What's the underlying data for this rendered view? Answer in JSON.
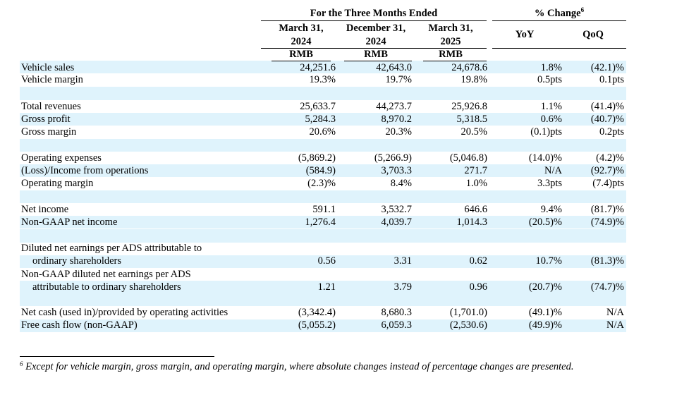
{
  "header": {
    "period_group": "For the Three Months Ended",
    "change_group": "% Change",
    "change_sup": "6",
    "columns": [
      {
        "line1": "March 31,",
        "line2": "2024",
        "currency": "RMB"
      },
      {
        "line1": "December 31,",
        "line2": "2024",
        "currency": "RMB"
      },
      {
        "line1": "March 31,",
        "line2": "2025",
        "currency": "RMB"
      }
    ],
    "yoy": "YoY",
    "qoq": "QoQ"
  },
  "rows": [
    {
      "label": "Vehicle sales",
      "values": [
        "24,251.6",
        "42,643.0",
        "24,678.6"
      ],
      "yoy": "1.8%",
      "qoq": "(42.1)%"
    },
    {
      "label": "Vehicle margin",
      "values": [
        "19.3%",
        "19.7%",
        "19.8%"
      ],
      "yoy": "0.5pts",
      "qoq": "0.1pts"
    },
    {
      "label": "Total revenues",
      "values": [
        "25,633.7",
        "44,273.7",
        "25,926.8"
      ],
      "yoy": "1.1%",
      "qoq": "(41.4)%"
    },
    {
      "label": "Gross profit",
      "values": [
        "5,284.3",
        "8,970.2",
        "5,318.5"
      ],
      "yoy": "0.6%",
      "qoq": "(40.7)%"
    },
    {
      "label": "Gross margin",
      "values": [
        "20.6%",
        "20.3%",
        "20.5%"
      ],
      "yoy": "(0.1)pts",
      "qoq": "0.2pts"
    },
    {
      "label": "Operating expenses",
      "values": [
        "(5,869.2)",
        "(5,266.9)",
        "(5,046.8)"
      ],
      "yoy": "(14.0)%",
      "qoq": "(4.2)%"
    },
    {
      "label": "(Loss)/Income from operations",
      "values": [
        "(584.9)",
        "3,703.3",
        "271.7"
      ],
      "yoy": "N/A",
      "qoq": "(92.7)%"
    },
    {
      "label": "Operating margin",
      "values": [
        "(2.3)%",
        "8.4%",
        "1.0%"
      ],
      "yoy": "3.3pts",
      "qoq": "(7.4)pts"
    },
    {
      "label": "Net income",
      "values": [
        "591.1",
        "3,532.7",
        "646.6"
      ],
      "yoy": "9.4%",
      "qoq": "(81.7)%"
    },
    {
      "label": "Non-GAAP net income",
      "values": [
        "1,276.4",
        "4,039.7",
        "1,014.3"
      ],
      "yoy": "(20.5)%",
      "qoq": "(74.9)%"
    },
    {
      "label": "Diluted net earnings per ADS attributable to",
      "label2": "ordinary shareholders",
      "values": [
        "0.56",
        "3.31",
        "0.62"
      ],
      "yoy": "10.7%",
      "qoq": "(81.3)%"
    },
    {
      "label": "Non-GAAP diluted net earnings per ADS",
      "label2": "attributable to ordinary shareholders",
      "values": [
        "1.21",
        "3.79",
        "0.96"
      ],
      "yoy": "(20.7)%",
      "qoq": "(74.7)%"
    },
    {
      "label": "Net cash (used in)/provided by operating activities",
      "values": [
        "(3,342.4)",
        "8,680.3",
        "(1,701.0)"
      ],
      "yoy": "(49.1)%",
      "qoq": "N/A"
    },
    {
      "label": "Free cash flow (non-GAAP)",
      "values": [
        "(5,055.2)",
        "6,059.3",
        "(2,530.6)"
      ],
      "yoy": "(49.9)%",
      "qoq": "N/A"
    }
  ],
  "footnote": {
    "marker": "6",
    "text": "Except for vehicle margin, gross margin, and operating margin, where absolute changes instead of percentage changes are presented."
  }
}
